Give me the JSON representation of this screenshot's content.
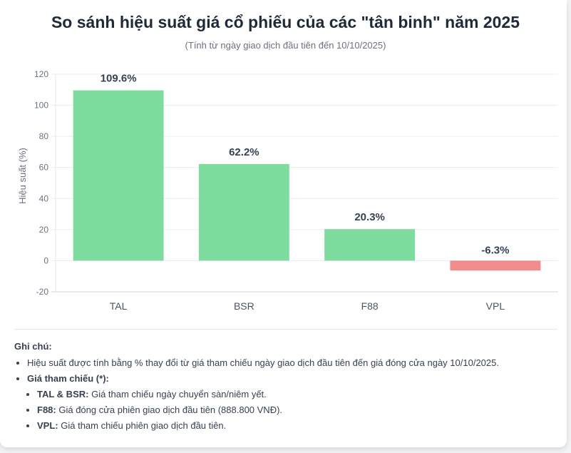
{
  "title": "So sánh hiệu suất giá cổ phiếu của các \"tân binh\" năm 2025",
  "subtitle": "(Tính từ ngày giao dịch đầu tiên đến 10/10/2025)",
  "chart_data": {
    "type": "bar",
    "categories": [
      "TAL",
      "BSR",
      "F88",
      "VPL"
    ],
    "values": [
      109.6,
      62.2,
      20.3,
      -6.3
    ],
    "data_labels": [
      "109.6%",
      "62.2%",
      "20.3%",
      "-6.3%"
    ],
    "ylabel": "Hiệu suất (%)",
    "xlabel": "",
    "ylim": [
      -20,
      120
    ],
    "yticks": [
      -20,
      0,
      20,
      40,
      60,
      80,
      100,
      120
    ],
    "grid": true,
    "colors": {
      "positive": "#7ddc9e",
      "negative": "#f28b8b",
      "positive_border": "#4ade80"
    }
  },
  "notes": {
    "heading": "Ghi chú:",
    "item1": "Hiệu suất được tính bằng % thay đổi từ giá tham chiếu ngày giao dịch đầu tiên đến giá đóng cửa ngày 10/10/2025.",
    "item2": "Giá tham chiếu (*):",
    "sub": [
      {
        "key": "TAL & BSR:",
        "text": " Giá tham chiếu ngày chuyển sàn/niêm yết."
      },
      {
        "key": "F88:",
        "text": " Giá đóng cửa phiên giao dịch đầu tiên (888.800 VNĐ)."
      },
      {
        "key": "VPL:",
        "text": " Giá tham chiếu phiên giao dịch đầu tiên."
      }
    ]
  }
}
